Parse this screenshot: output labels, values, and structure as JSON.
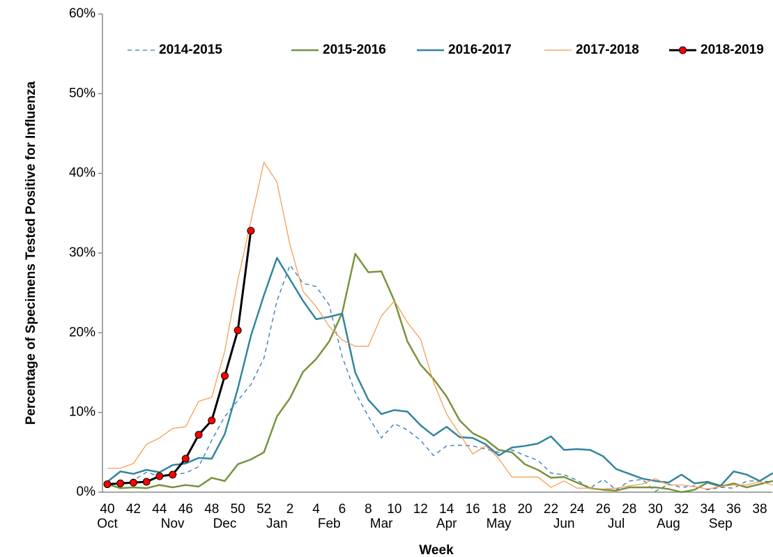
{
  "chart_data": {
    "type": "line",
    "x_label": "Week",
    "y_label": "Percentage of Specimens Tested Positive for Influenza",
    "categories": [
      "40",
      null,
      "42",
      null,
      "44",
      null,
      "46",
      null,
      "48",
      null,
      "50",
      null,
      "52",
      null,
      "2",
      null,
      "4",
      null,
      "6",
      null,
      "8",
      null,
      "10",
      null,
      "12",
      null,
      "14",
      null,
      "16",
      null,
      "18",
      null,
      "20",
      null,
      "22",
      null,
      "24",
      null,
      "26",
      null,
      "28",
      null,
      "30",
      null,
      "32",
      null,
      "34",
      null,
      "36",
      null,
      "38",
      null
    ],
    "months": [
      "Oct",
      null,
      null,
      null,
      null,
      "Nov",
      null,
      null,
      null,
      "Dec",
      null,
      null,
      null,
      "Jan",
      null,
      null,
      null,
      "Feb",
      null,
      null,
      null,
      "Mar",
      null,
      null,
      null,
      null,
      "Apr",
      null,
      null,
      null,
      "May",
      null,
      null,
      null,
      null,
      "Jun",
      null,
      null,
      null,
      "Jul",
      null,
      null,
      null,
      "Aug",
      null,
      null,
      null,
      "Sep",
      null,
      null,
      null,
      null
    ],
    "ylim": [
      0,
      60
    ],
    "yticks": [
      {
        "value": 0,
        "label": "0%"
      },
      {
        "value": 10,
        "label": "10%"
      },
      {
        "value": 20,
        "label": "20%"
      },
      {
        "value": 30,
        "label": "30%"
      },
      {
        "value": 40,
        "label": "40%"
      },
      {
        "value": 50,
        "label": "50%"
      },
      {
        "value": 60,
        "label": "60%"
      }
    ],
    "legend_position": "top",
    "series": [
      {
        "name": "2014-2015",
        "color": "#2e75b6",
        "style": "dashed",
        "values": [
          1.0,
          1.0,
          1.5,
          2.5,
          2.0,
          2.2,
          2.4,
          3.2,
          6.5,
          9.5,
          11.5,
          13.5,
          16.8,
          24.0,
          28.5,
          26.2,
          25.8,
          23.5,
          17.0,
          12.5,
          9.5,
          6.8,
          8.6,
          7.8,
          6.5,
          4.6,
          5.8,
          5.9,
          5.8,
          5.4,
          5.0,
          5.3,
          4.6,
          4.0,
          2.4,
          2.2,
          1.5,
          0.5,
          1.6,
          0.3,
          1.4,
          1.6,
          0.1,
          1.0,
          0.6,
          0.8,
          0.3,
          0.6,
          0.5,
          1.4,
          1.4,
          1.3
        ]
      },
      {
        "name": "2015-2016",
        "color": "#77933c",
        "style": "solid",
        "values": [
          1.0,
          0.5,
          0.6,
          0.5,
          0.9,
          0.6,
          0.9,
          0.7,
          1.8,
          1.4,
          3.5,
          4.1,
          5.0,
          9.5,
          11.8,
          15.1,
          16.7,
          18.9,
          22.5,
          29.9,
          27.6,
          27.7,
          24.0,
          18.9,
          16.0,
          14.2,
          12.0,
          9.0,
          7.4,
          6.6,
          5.3,
          5.0,
          3.5,
          2.8,
          1.8,
          1.9,
          1.2,
          0.5,
          0.3,
          0.2,
          0.6,
          0.6,
          0.6,
          0.4,
          0.0,
          0.3,
          1.2,
          0.7,
          1.1,
          0.6,
          1.0,
          1.4
        ]
      },
      {
        "name": "2016-2017",
        "color": "#31859c",
        "style": "solid",
        "values": [
          1.3,
          2.6,
          2.3,
          2.8,
          2.5,
          3.4,
          3.6,
          4.3,
          4.2,
          7.3,
          13.0,
          19.6,
          24.7,
          29.4,
          26.7,
          24.0,
          21.7,
          22.0,
          22.4,
          15.0,
          11.6,
          9.8,
          10.3,
          10.1,
          8.4,
          7.1,
          8.2,
          6.9,
          6.8,
          6.0,
          4.6,
          5.6,
          5.8,
          6.1,
          7.0,
          5.3,
          5.4,
          5.3,
          4.5,
          2.9,
          2.3,
          1.7,
          1.4,
          1.2,
          2.2,
          1.1,
          1.3,
          0.8,
          2.6,
          2.2,
          1.4,
          2.4
        ]
      },
      {
        "name": "2017-2018",
        "color": "#f79646",
        "style": "thin",
        "values": [
          3.0,
          3.0,
          3.6,
          6.0,
          6.8,
          8.0,
          8.2,
          11.4,
          11.9,
          17.7,
          26.6,
          34.0,
          41.4,
          38.9,
          31.0,
          25.2,
          23.3,
          20.8,
          19.1,
          18.3,
          18.3,
          22.1,
          24.0,
          21.3,
          19.2,
          13.8,
          9.8,
          7.3,
          4.8,
          5.8,
          4.2,
          1.9,
          1.9,
          1.9,
          0.6,
          1.4,
          0.5,
          0.5,
          0.4,
          0.5,
          0.8,
          1.0,
          1.7,
          0.9,
          0.9,
          0.7,
          0.4,
          0.7,
          0.9,
          0.9,
          1.3,
          0.9
        ]
      },
      {
        "name": "2018-2019",
        "color": "#000000",
        "marker": "circle",
        "marker_color": "#ff0000",
        "style": "bold",
        "values": [
          1.0,
          1.1,
          1.2,
          1.3,
          2.0,
          2.2,
          4.2,
          7.2,
          9.0,
          14.6,
          20.3,
          32.8,
          null,
          null,
          null,
          null,
          null,
          null,
          null,
          null,
          null,
          null,
          null,
          null,
          null,
          null,
          null,
          null,
          null,
          null,
          null,
          null,
          null,
          null,
          null,
          null,
          null,
          null,
          null,
          null,
          null,
          null,
          null,
          null,
          null,
          null,
          null,
          null,
          null,
          null,
          null,
          null
        ]
      }
    ]
  }
}
